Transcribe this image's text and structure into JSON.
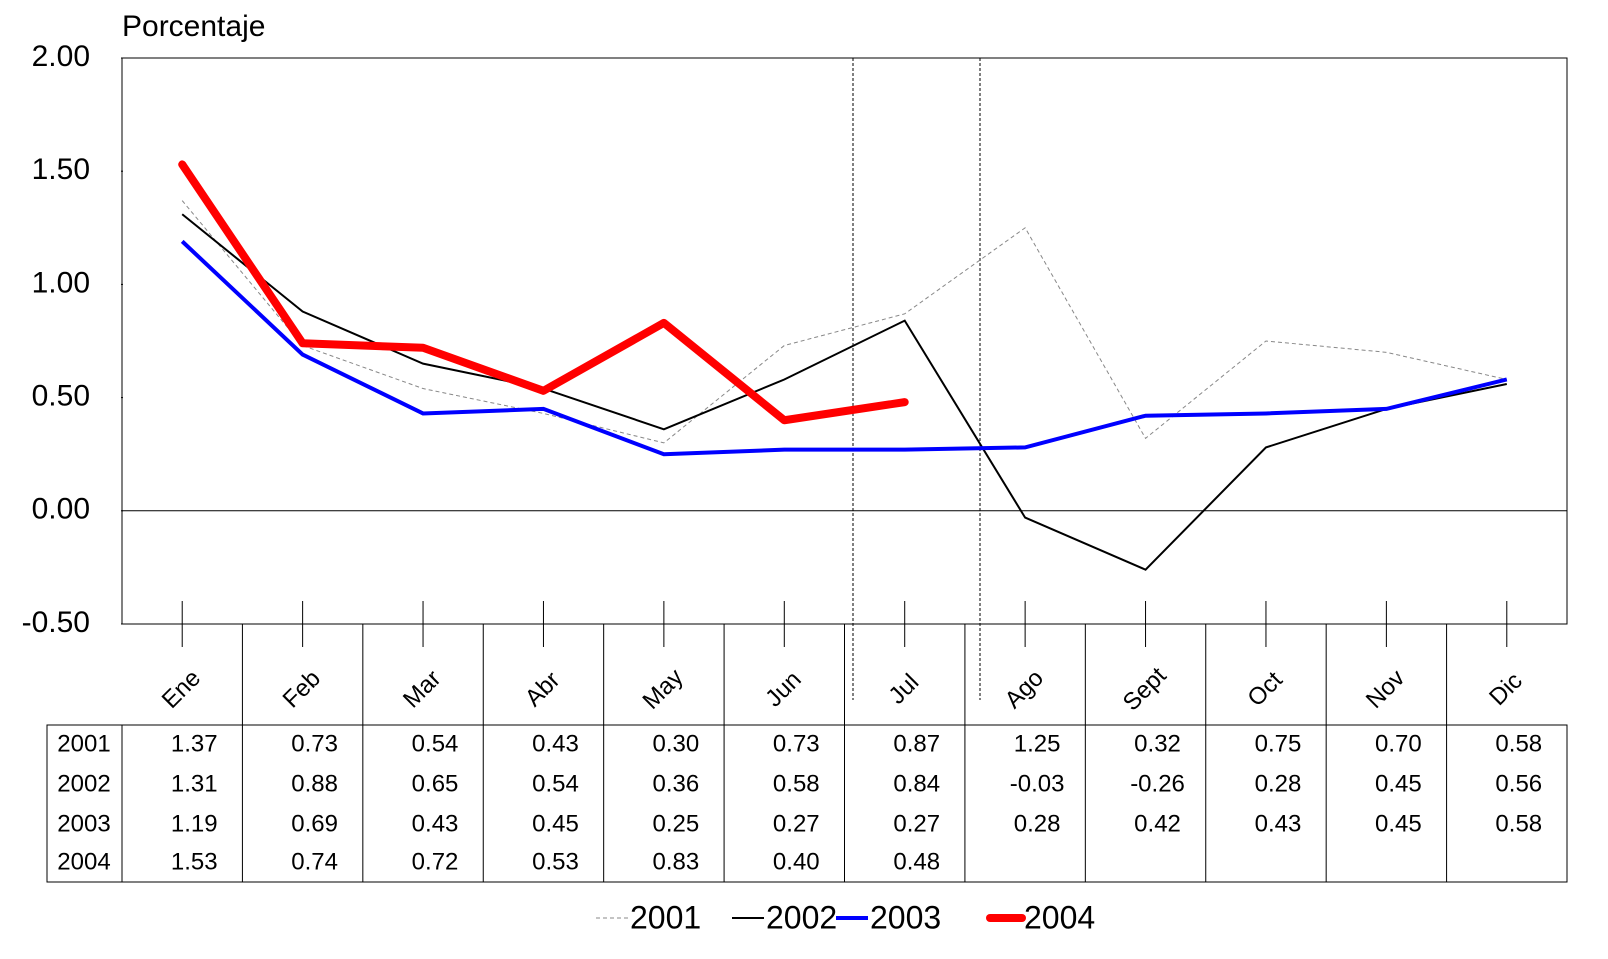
{
  "chart_data": {
    "type": "line",
    "y_label": "Porcentaje",
    "categories": [
      "Ene",
      "Feb",
      "Mar",
      "Abr",
      "May",
      "Jun",
      "Jul",
      "Ago",
      "Sept",
      "Oct",
      "Nov",
      "Dic"
    ],
    "ylim": [
      -0.5,
      2
    ],
    "yticks": [
      {
        "value": -0.5,
        "label": "-0.50"
      },
      {
        "value": 0,
        "label": "0.00"
      },
      {
        "value": 0.5,
        "label": "0.50"
      },
      {
        "value": 1,
        "label": "1.00"
      },
      {
        "value": 1.5,
        "label": "1.50"
      },
      {
        "value": 2,
        "label": "2.00"
      }
    ],
    "series": [
      {
        "name": "2001",
        "color": "#888888",
        "values": [
          1.37,
          0.73,
          0.54,
          0.43,
          0.3,
          0.73,
          0.87,
          1.25,
          0.32,
          0.75,
          0.7,
          0.58
        ],
        "value_labels": [
          "1.37",
          "0.73",
          "0.54",
          "0.43",
          "0.30",
          "0.73",
          "0.87",
          "1.25",
          "0.32",
          "0.75",
          "0.70",
          "0.58"
        ]
      },
      {
        "name": "2002",
        "color": "#000000",
        "values": [
          1.31,
          0.88,
          0.65,
          0.54,
          0.36,
          0.58,
          0.84,
          -0.03,
          -0.26,
          0.28,
          0.45,
          0.56
        ],
        "value_labels": [
          "1.31",
          "0.88",
          "0.65",
          "0.54",
          "0.36",
          "0.58",
          "0.84",
          "-0.03",
          "-0.26",
          "0.28",
          "0.45",
          "0.56"
        ]
      },
      {
        "name": "2003",
        "color": "#0000ff",
        "values": [
          1.19,
          0.69,
          0.43,
          0.45,
          0.25,
          0.27,
          0.27,
          0.28,
          0.42,
          0.43,
          0.45,
          0.58
        ],
        "value_labels": [
          "1.19",
          "0.69",
          "0.43",
          "0.45",
          "0.25",
          "0.27",
          "0.27",
          "0.28",
          "0.42",
          "0.43",
          "0.45",
          "0.58"
        ]
      },
      {
        "name": "2004",
        "color": "#ff0000",
        "values": [
          1.53,
          0.74,
          0.72,
          0.53,
          0.83,
          0.4,
          0.48,
          null,
          null,
          null,
          null,
          null
        ],
        "value_labels": [
          "1.53",
          "0.74",
          "0.72",
          "0.53",
          "0.83",
          "0.40",
          "0.48",
          null,
          null,
          null,
          null,
          null
        ]
      }
    ]
  }
}
